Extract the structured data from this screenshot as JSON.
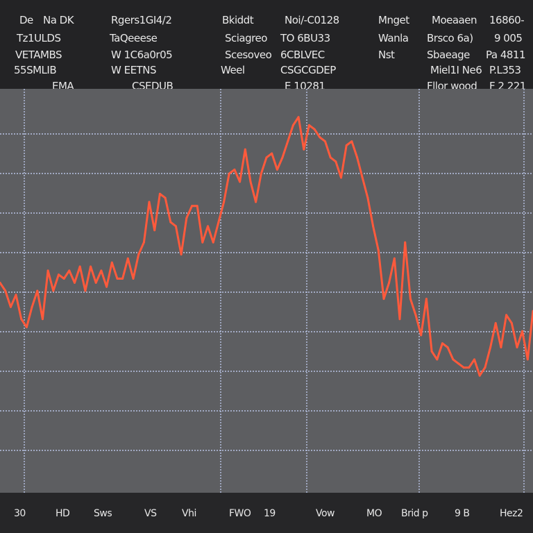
{
  "header": {
    "cells": [
      "De",
      "Na DK",
      "Rgers1GI4/2",
      "Bkiddt",
      "Noi/-C0128",
      "Mnget",
      "Moeaaen",
      "16860-",
      "Tz1ULDS",
      "TaQeeese",
      "Sciagreo",
      "TO 6BU33",
      "Wanla",
      "Brsco 6a)",
      "9 005",
      "VETAMBS",
      "W  1C6a0r05",
      "Scesoveo",
      "6CBLVEC",
      "Nst",
      "Sbaeage",
      "Pa 4811",
      "55SMLIB",
      "W  EETNS",
      "Weel",
      "CSGCGDEP",
      "Miel1I Ne6",
      "P.L353",
      "EMA",
      "CSEDUB",
      "E  10281",
      "Fllor  wood",
      "F 2 221"
    ]
  },
  "x_tick_labels": [
    "30",
    "HD",
    "Sws",
    "VS",
    "Vhi",
    "FWO",
    "19",
    "Vow",
    "MO",
    "Brid p",
    "9 B",
    "Hez2"
  ],
  "chart_data": {
    "type": "line",
    "title": "",
    "xlabel": "",
    "ylabel": "",
    "grid": true,
    "ylim": [
      0,
      10
    ],
    "x": [
      0,
      1,
      2,
      3,
      4,
      5,
      6,
      7,
      8,
      9,
      10,
      11,
      12,
      13,
      14,
      15,
      16,
      17,
      18,
      19,
      20,
      21,
      22,
      23,
      24,
      25,
      26,
      27,
      28,
      29,
      30,
      31,
      32,
      33,
      34,
      35,
      36,
      37,
      38,
      39,
      40,
      41,
      42,
      43,
      44,
      45,
      46,
      47,
      48,
      49,
      50,
      51,
      52,
      53,
      54,
      55,
      56,
      57,
      58,
      59,
      60,
      61,
      62,
      63,
      64,
      65,
      66,
      67,
      68,
      69,
      70,
      71,
      72,
      73,
      74,
      75,
      76,
      77,
      78,
      79,
      80,
      81,
      82,
      83,
      84,
      85,
      86,
      87,
      88,
      89,
      90,
      91,
      92,
      93,
      94,
      95,
      96,
      97,
      98,
      99,
      100
    ],
    "series": [
      {
        "color": "#ff5a3c",
        "values": [
          5.2,
          5.0,
          4.6,
          4.9,
          4.3,
          4.1,
          4.6,
          5.0,
          4.3,
          5.5,
          5.0,
          5.4,
          5.3,
          5.5,
          5.2,
          5.6,
          5.0,
          5.6,
          5.2,
          5.5,
          5.1,
          5.7,
          5.3,
          5.3,
          5.8,
          5.3,
          5.9,
          6.2,
          7.2,
          6.5,
          7.4,
          7.3,
          6.7,
          6.6,
          5.9,
          6.8,
          7.1,
          7.1,
          6.2,
          6.6,
          6.2,
          6.7,
          7.2,
          7.9,
          8.0,
          7.7,
          8.5,
          7.7,
          7.2,
          7.9,
          8.3,
          8.4,
          8.0,
          8.3,
          8.7,
          9.1,
          9.3,
          8.5,
          9.1,
          9.0,
          8.8,
          8.7,
          8.3,
          8.2,
          7.8,
          8.6,
          8.7,
          8.3,
          7.8,
          7.3,
          6.6,
          6.0,
          4.8,
          5.2,
          5.8,
          4.3,
          6.2,
          4.8,
          4.4,
          3.9,
          4.8,
          3.5,
          3.3,
          3.7,
          3.6,
          3.3,
          3.2,
          3.1,
          3.1,
          3.3,
          2.9,
          3.1,
          3.6,
          4.2,
          3.6,
          4.4,
          4.2,
          3.6,
          4.0,
          3.3,
          4.5
        ]
      }
    ]
  }
}
